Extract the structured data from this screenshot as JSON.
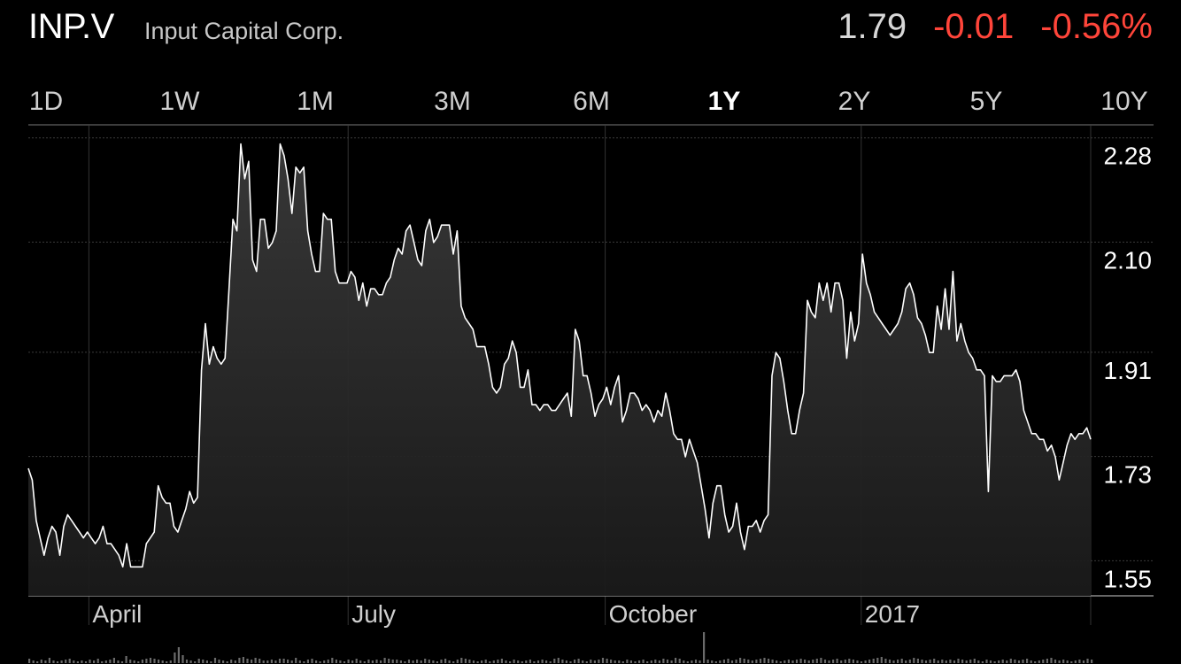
{
  "header": {
    "ticker": "INP.V",
    "company": "Input Capital Corp.",
    "price": "1.79",
    "change": "-0.01",
    "change_percent": "-0.56%"
  },
  "colors": {
    "background": "#000000",
    "negative": "#ff453a",
    "line": "#ffffff",
    "grid": "#3a3a3a"
  },
  "ranges": [
    {
      "label": "1D",
      "active": false
    },
    {
      "label": "1W",
      "active": false
    },
    {
      "label": "1M",
      "active": false
    },
    {
      "label": "3M",
      "active": false
    },
    {
      "label": "6M",
      "active": false
    },
    {
      "label": "1Y",
      "active": true
    },
    {
      "label": "2Y",
      "active": false
    },
    {
      "label": "5Y",
      "active": false
    },
    {
      "label": "10Y",
      "active": false
    }
  ],
  "chart_data": {
    "type": "area",
    "y_ticks": [
      "2.28",
      "2.10",
      "1.91",
      "1.73",
      "1.55"
    ],
    "y_tick_values": [
      2.28,
      2.1,
      1.91,
      1.73,
      1.55
    ],
    "ylim": [
      1.52,
      2.33
    ],
    "x_ticks": [
      "April",
      "July",
      "October",
      "2017"
    ],
    "x_tick_positions": [
      0.057,
      0.301,
      0.543,
      0.784
    ],
    "grid": true,
    "series": [
      {
        "values": [
          1.74,
          1.72,
          1.65,
          1.62,
          1.59,
          1.62,
          1.64,
          1.63,
          1.59,
          1.64,
          1.66,
          1.65,
          1.64,
          1.63,
          1.62,
          1.63,
          1.62,
          1.61,
          1.62,
          1.64,
          1.61,
          1.61,
          1.6,
          1.59,
          1.57,
          1.61,
          1.57,
          1.57,
          1.57,
          1.57,
          1.61,
          1.62,
          1.63,
          1.71,
          1.69,
          1.68,
          1.68,
          1.64,
          1.63,
          1.65,
          1.67,
          1.7,
          1.68,
          1.69,
          1.91,
          1.99,
          1.92,
          1.95,
          1.93,
          1.92,
          1.93,
          2.05,
          2.17,
          2.15,
          2.3,
          2.24,
          2.27,
          2.1,
          2.08,
          2.17,
          2.17,
          2.12,
          2.13,
          2.15,
          2.3,
          2.28,
          2.24,
          2.18,
          2.26,
          2.25,
          2.26,
          2.15,
          2.11,
          2.08,
          2.08,
          2.18,
          2.17,
          2.17,
          2.08,
          2.06,
          2.06,
          2.06,
          2.08,
          2.07,
          2.03,
          2.06,
          2.02,
          2.05,
          2.05,
          2.04,
          2.04,
          2.06,
          2.07,
          2.1,
          2.12,
          2.11,
          2.15,
          2.16,
          2.13,
          2.1,
          2.09,
          2.15,
          2.17,
          2.13,
          2.14,
          2.16,
          2.16,
          2.16,
          2.11,
          2.15,
          2.02,
          2.0,
          1.99,
          1.98,
          1.95,
          1.95,
          1.95,
          1.92,
          1.88,
          1.87,
          1.88,
          1.92,
          1.93,
          1.96,
          1.94,
          1.88,
          1.88,
          1.91,
          1.85,
          1.85,
          1.84,
          1.85,
          1.85,
          1.84,
          1.84,
          1.85,
          1.86,
          1.87,
          1.83,
          1.98,
          1.96,
          1.9,
          1.9,
          1.87,
          1.83,
          1.85,
          1.86,
          1.88,
          1.85,
          1.88,
          1.9,
          1.82,
          1.84,
          1.87,
          1.87,
          1.86,
          1.84,
          1.85,
          1.84,
          1.82,
          1.84,
          1.83,
          1.87,
          1.84,
          1.8,
          1.79,
          1.79,
          1.76,
          1.79,
          1.77,
          1.75,
          1.71,
          1.67,
          1.62,
          1.68,
          1.71,
          1.71,
          1.66,
          1.63,
          1.64,
          1.68,
          1.63,
          1.6,
          1.64,
          1.64,
          1.65,
          1.63,
          1.65,
          1.66,
          1.9,
          1.94,
          1.93,
          1.89,
          1.84,
          1.8,
          1.8,
          1.84,
          1.87,
          2.03,
          2.01,
          2.0,
          2.06,
          2.03,
          2.06,
          2.01,
          2.06,
          2.06,
          2.03,
          1.93,
          2.01,
          1.96,
          1.99,
          2.11,
          2.06,
          2.04,
          2.01,
          2.0,
          1.99,
          1.98,
          1.97,
          1.98,
          1.99,
          2.01,
          2.05,
          2.06,
          2.04,
          2.0,
          1.99,
          1.97,
          1.94,
          1.94,
          2.02,
          1.98,
          2.05,
          1.98,
          2.08,
          1.96,
          1.99,
          1.96,
          1.94,
          1.93,
          1.91,
          1.91,
          1.9,
          1.7,
          1.9,
          1.89,
          1.89,
          1.9,
          1.9,
          1.9,
          1.91,
          1.89,
          1.84,
          1.82,
          1.8,
          1.8,
          1.79,
          1.79,
          1.77,
          1.78,
          1.76,
          1.72,
          1.75,
          1.78,
          1.8,
          1.79,
          1.8,
          1.8,
          1.81,
          1.79
        ]
      }
    ],
    "volume": {
      "values": [
        5,
        3,
        2,
        4,
        3,
        6,
        3,
        2,
        3,
        4,
        5,
        3,
        2,
        3,
        2,
        4,
        3,
        5,
        2,
        3,
        4,
        6,
        3,
        2,
        8,
        4,
        3,
        2,
        4,
        5,
        6,
        5,
        4,
        3,
        2,
        3,
        12,
        18,
        9,
        4,
        3,
        2,
        5,
        4,
        3,
        2,
        6,
        4,
        3,
        2,
        4,
        3,
        6,
        7,
        5,
        4,
        6,
        5,
        3,
        3,
        4,
        3,
        5,
        5,
        4,
        3,
        6,
        3,
        2,
        4,
        5,
        3,
        2,
        3,
        4,
        6,
        4,
        3,
        2,
        4,
        3,
        5,
        3,
        2,
        4,
        3,
        4,
        3,
        6,
        5,
        4,
        4,
        3,
        2,
        4,
        3,
        4,
        3,
        5,
        4,
        3,
        2,
        4,
        5,
        3,
        2,
        4,
        6,
        5,
        4,
        3,
        2,
        3,
        4,
        2,
        3,
        4,
        5,
        3,
        2,
        4,
        3,
        2,
        3,
        4,
        2,
        3,
        4,
        3,
        2,
        5,
        6,
        4,
        3,
        2,
        4,
        5,
        3,
        2,
        4,
        3,
        4,
        6,
        5,
        4,
        3,
        3,
        2,
        4,
        3,
        2,
        3,
        4,
        2,
        3,
        4,
        3,
        5,
        4,
        3,
        6,
        5,
        3,
        2,
        3,
        4,
        3,
        35,
        4,
        3,
        2,
        3,
        4,
        5,
        3,
        4,
        6,
        5,
        4,
        3,
        4,
        5,
        6,
        5,
        4,
        3,
        2,
        3,
        4,
        3,
        4,
        5,
        4,
        3,
        4,
        5,
        6,
        4,
        3,
        4,
        5,
        3,
        4,
        5,
        4,
        3,
        2,
        3,
        4,
        5,
        6,
        7,
        5,
        4,
        3,
        4,
        5,
        3,
        4,
        6,
        5,
        4,
        3,
        4,
        5,
        3,
        4,
        3,
        4,
        3,
        5,
        4,
        3,
        4,
        5,
        3,
        2,
        4,
        3,
        2,
        3,
        4,
        3,
        5,
        4,
        3,
        4,
        5,
        3,
        2,
        3,
        4,
        5,
        6,
        4,
        3,
        4,
        3,
        2,
        3,
        4,
        3,
        5,
        4
      ],
      "max": 40
    }
  }
}
